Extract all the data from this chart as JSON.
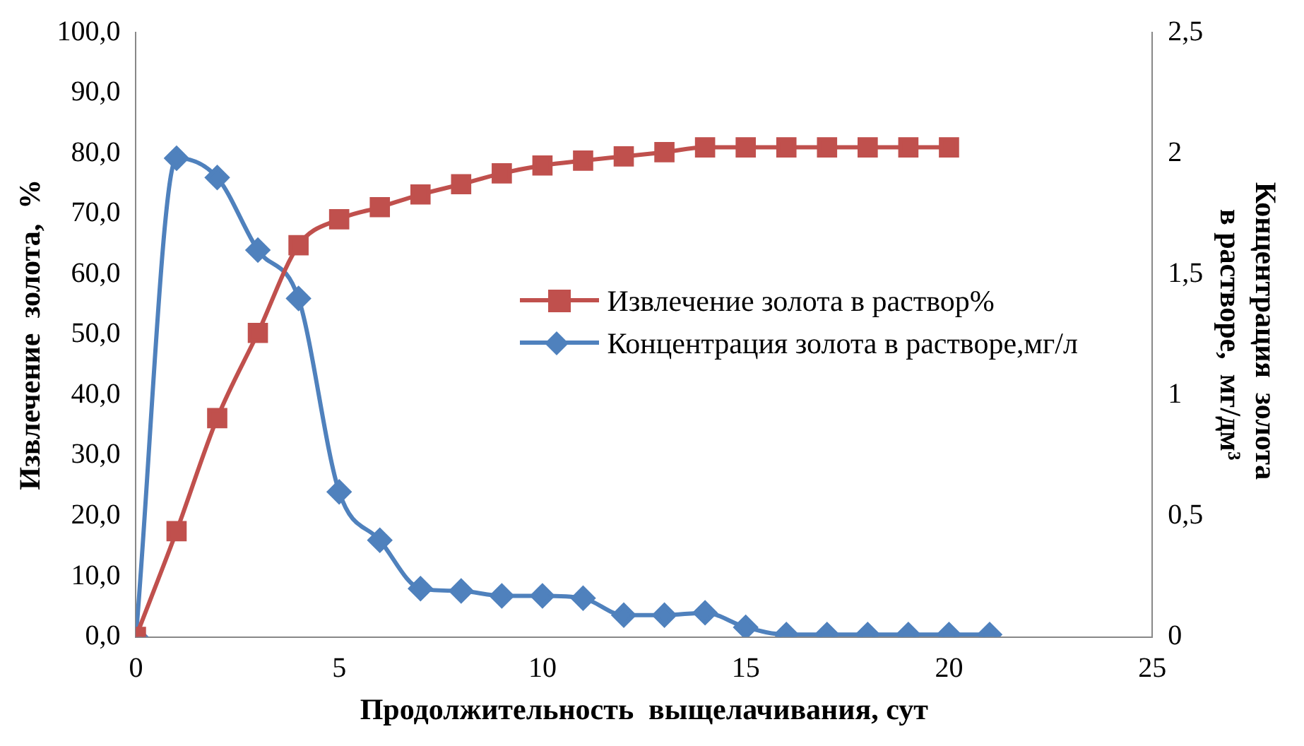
{
  "chart_data": {
    "type": "line",
    "xlabel": "Продолжительность  выщелачивания, сут",
    "ylabel": "Извлечение  золота,  %",
    "y2label": "Концентрация  золота  в растворе,  мг/дм³",
    "xlim": [
      0,
      25
    ],
    "xticks": [
      0,
      5,
      10,
      15,
      20,
      25
    ],
    "ylim": [
      0,
      100
    ],
    "yticks": [
      {
        "value": 0,
        "label": "0,0"
      },
      {
        "value": 10,
        "label": "10,0"
      },
      {
        "value": 20,
        "label": "20,0"
      },
      {
        "value": 30,
        "label": "30,0"
      },
      {
        "value": 40,
        "label": "40,0"
      },
      {
        "value": 50,
        "label": "50,0"
      },
      {
        "value": 60,
        "label": "60,0"
      },
      {
        "value": 70,
        "label": "70,0"
      },
      {
        "value": 80,
        "label": "80,0"
      },
      {
        "value": 90,
        "label": "90,0"
      },
      {
        "value": 100,
        "label": "100,0"
      }
    ],
    "y2lim": [
      0,
      2.5
    ],
    "y2ticks": [
      0,
      {
        "value": 0.5,
        "label": "0,5"
      },
      1,
      {
        "value": 1.5,
        "label": "1,5"
      },
      2,
      {
        "value": 2.5,
        "label": "2,5"
      }
    ],
    "legend": "right",
    "grid": false,
    "series": [
      {
        "name": "Извлечение золота в раствор%",
        "color": "#c0504d",
        "marker": "square",
        "x": [
          0,
          1,
          2,
          3,
          4,
          5,
          6,
          7,
          8,
          9,
          10,
          11,
          12,
          13,
          14,
          15,
          16,
          17,
          18,
          19,
          20
        ],
        "values": [
          0,
          17.5,
          36.2,
          50.3,
          64.8,
          69.1,
          71.1,
          73.2,
          74.9,
          76.7,
          78,
          78.8,
          79.5,
          80.2,
          81,
          81,
          81,
          81,
          81,
          81,
          81
        ]
      },
      {
        "name": "Концентрация золота в растворе,мг/л",
        "color": "#4f81bd",
        "marker": "diamond",
        "axis": "y2",
        "x": [
          0,
          1,
          2,
          3,
          4,
          5,
          6,
          7,
          8,
          9,
          10,
          11,
          12,
          13,
          14,
          15,
          16,
          17,
          18,
          19,
          20,
          21
        ],
        "values": [
          0,
          1.98,
          1.9,
          1.6,
          1.4,
          0.6,
          0.4,
          0.2,
          0.19,
          0.17,
          0.17,
          0.16,
          0.09,
          0.09,
          0.1,
          0.04,
          0.01,
          0.01,
          0.01,
          0.01,
          0.01,
          0.01
        ]
      }
    ]
  }
}
